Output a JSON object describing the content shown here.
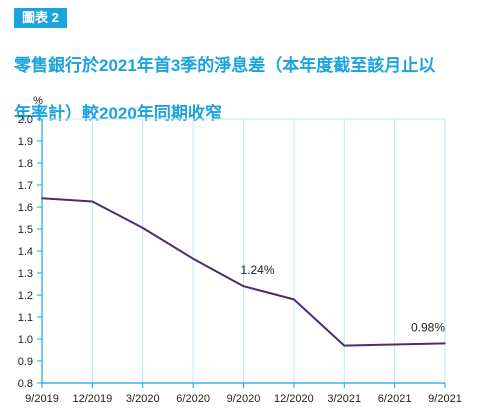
{
  "badge": "圖表 2",
  "title_lines": [
    "零售銀行於2021年首3季的淨息差（本年度截至該月止以",
    "年率計）較2020年同期收窄"
  ],
  "chart_data": {
    "type": "line",
    "title": "零售銀行於2021年首3季的淨息差（本年度截至該月止以年率計）較2020年同期收窄",
    "ylabel": "%",
    "xlabel": "",
    "ylim": [
      0.8,
      2.0
    ],
    "yticks": [
      "0.8",
      "0.9",
      "1.0",
      "1.1",
      "1.2",
      "1.3",
      "1.4",
      "1.5",
      "1.6",
      "1.7",
      "1.8",
      "1.9",
      "2.0"
    ],
    "categories": [
      "9/2019",
      "12/2019",
      "3/2020",
      "6/2020",
      "9/2020",
      "12/2020",
      "3/2021",
      "6/2021",
      "9/2021"
    ],
    "series": [
      {
        "values": [
          1.64,
          1.625,
          1.505,
          1.365,
          1.24,
          1.18,
          0.97,
          0.975,
          0.98
        ]
      }
    ],
    "annotations": [
      {
        "index": 4,
        "text": "1.24%"
      },
      {
        "index": 8,
        "text": "0.98%"
      }
    ],
    "grid": "vertical",
    "line_color": "#4b2e6b",
    "grid_color": "#bfe7f7",
    "axis_color": "#1aa3dd"
  }
}
